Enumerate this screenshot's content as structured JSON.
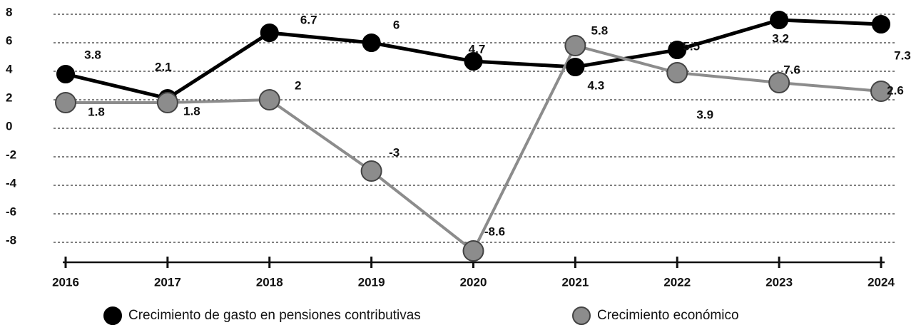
{
  "chart_data": {
    "type": "line",
    "categories": [
      "2016",
      "2017",
      "2018",
      "2019",
      "2020",
      "2021",
      "2022",
      "2023",
      "2024"
    ],
    "series": [
      {
        "name": "Crecimiento de gasto en pensiones contributivas",
        "color": "#000000",
        "values": [
          3.8,
          2.1,
          6.7,
          6,
          4.7,
          4.3,
          5.5,
          7.6,
          7.3
        ]
      },
      {
        "name": "Crecimiento económico",
        "color": "#8c8c8c",
        "values": [
          1.8,
          1.8,
          2,
          -3,
          -8.6,
          5.8,
          3.9,
          3.2,
          2.6
        ]
      }
    ],
    "ylim": [
      -9.4,
      9
    ],
    "yticks": [
      8,
      6,
      4,
      2,
      0,
      -2,
      -4,
      -6,
      -8
    ],
    "grid": true,
    "legend": "bottom"
  }
}
